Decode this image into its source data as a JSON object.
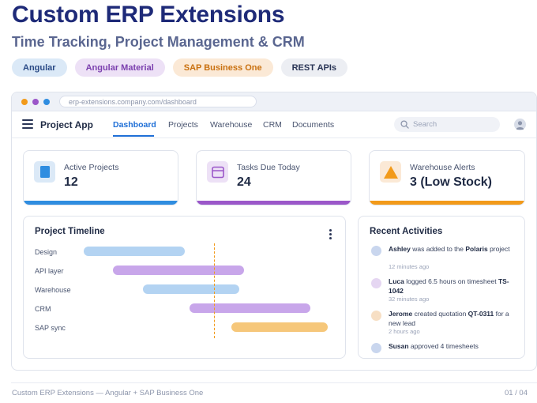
{
  "hero": {
    "title": "Custom ERP Extensions",
    "subtitle": "Time Tracking, Project Management & CRM",
    "tags": [
      {
        "label": "Angular",
        "bg": "#dbe9f7",
        "color": "#2a4a86"
      },
      {
        "label": "Angular Material",
        "bg": "#ede1f6",
        "color": "#7b3fae"
      },
      {
        "label": "SAP Business One",
        "bg": "#fbe9d6",
        "color": "#c9700f"
      },
      {
        "label": "REST APIs",
        "bg": "#eceef3",
        "color": "#2a3556"
      }
    ]
  },
  "browser": {
    "url": "erp-extensions.company.com/dashboard",
    "dots": [
      "#f29a1a",
      "#9b57c9",
      "#2f8de0"
    ]
  },
  "nav": {
    "brand": "Project App",
    "links": [
      "Dashboard",
      "Projects",
      "Warehouse",
      "CRM",
      "Documents"
    ],
    "active": "Dashboard",
    "search_placeholder": "Search"
  },
  "cards": [
    {
      "label": "Active Projects",
      "value": "12",
      "icon": "document-icon",
      "accent": "#2f8de0",
      "icon_bg": "#dbe9f7"
    },
    {
      "label": "Tasks Due Today",
      "value": "24",
      "icon": "calendar-icon",
      "accent": "#9b57c9",
      "icon_bg": "#ede1f6"
    },
    {
      "label": "Warehouse Alerts",
      "value": "3 (Low Stock)",
      "icon": "warning-icon",
      "accent": "#f29a1a",
      "icon_bg": "#fbe9d6"
    }
  ],
  "timeline": {
    "title": "Project Timeline",
    "rows": [
      {
        "label": "Design",
        "start": 0.0,
        "end": 0.41,
        "color": "#b3d3f2"
      },
      {
        "label": "API layer",
        "start": 0.12,
        "end": 0.65,
        "color": "#c8a6ea"
      },
      {
        "label": "Warehouse",
        "start": 0.24,
        "end": 0.63,
        "color": "#b3d3f2"
      },
      {
        "label": "CRM",
        "start": 0.43,
        "end": 0.92,
        "color": "#c8a6ea"
      },
      {
        "label": "SAP sync",
        "start": 0.6,
        "end": 0.99,
        "color": "#f6c77a"
      }
    ],
    "today": 0.53
  },
  "activities": {
    "title": "Recent Activities",
    "items": [
      {
        "who": "Ashley",
        "rest1": " was added to the ",
        "bold2": "Polaris",
        "rest2": " project",
        "time": "12 minutes ago",
        "avatar": "#c9d6ee"
      },
      {
        "who": "Luca",
        "rest1": " logged 6.5 hours on timesheet ",
        "bold2": "TS-1042",
        "rest2": "",
        "time": "32 minutes ago",
        "avatar": "#e5d6f2"
      },
      {
        "who": "Jerome",
        "rest1": " created quotation ",
        "bold2": "QT-0311",
        "rest2": " for a new lead",
        "time": "2 hours ago",
        "avatar": "#f7dfc4"
      },
      {
        "who": "Susan",
        "rest1": " approved 4 timesheets",
        "bold2": "",
        "rest2": "",
        "time": "",
        "avatar": "#c9d6ee"
      }
    ]
  },
  "footer": {
    "left": "Custom ERP Extensions — Angular + SAP Business One",
    "right": "01 / 04"
  }
}
